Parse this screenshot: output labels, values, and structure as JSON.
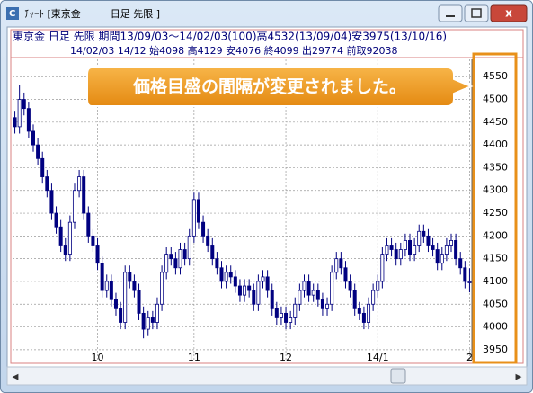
{
  "window": {
    "title": "ﾁｬｰﾄ [東京金　　　日足 先限 ]"
  },
  "chart_data": {
    "type": "candlestick",
    "title": "東京金 日足 先限 期間13/09/03～14/02/03(100)高4532(13/09/04)安3975(13/10/16)",
    "subtitle": "14/02/03 14/12 始4098 高4129 安4076 終4099 出29774 前取92038",
    "annotation": "価格目盛の間隔が変更されました。",
    "categories": [
      null,
      null,
      null,
      null,
      null,
      null,
      null,
      null,
      null,
      null,
      null,
      null,
      null,
      null,
      null,
      null,
      null,
      null,
      "10",
      null,
      null,
      null,
      null,
      null,
      null,
      null,
      null,
      null,
      null,
      null,
      null,
      null,
      null,
      null,
      null,
      null,
      null,
      null,
      null,
      "11",
      null,
      null,
      null,
      null,
      null,
      null,
      null,
      null,
      null,
      null,
      null,
      null,
      null,
      null,
      null,
      null,
      null,
      null,
      null,
      "12",
      null,
      null,
      null,
      null,
      null,
      null,
      null,
      null,
      null,
      null,
      null,
      null,
      null,
      null,
      null,
      null,
      null,
      null,
      null,
      "14/1",
      null,
      null,
      null,
      null,
      null,
      null,
      null,
      null,
      null,
      null,
      null,
      null,
      null,
      null,
      null,
      null,
      null,
      null,
      null,
      "2"
    ],
    "open": [
      4460,
      4440,
      4500,
      4480,
      4430,
      4400,
      4370,
      4330,
      4300,
      4250,
      4220,
      4180,
      4160,
      4230,
      4300,
      4330,
      4250,
      4200,
      4180,
      4140,
      4080,
      4100,
      4060,
      4040,
      4010,
      4120,
      4100,
      4080,
      4030,
      3995,
      4020,
      4010,
      4050,
      4120,
      4160,
      4150,
      4130,
      4170,
      4150,
      4200,
      4280,
      4230,
      4200,
      4180,
      4150,
      4130,
      4100,
      4120,
      4110,
      4090,
      4070,
      4090,
      4080,
      4050,
      4100,
      4110,
      4080,
      4040,
      4020,
      4030,
      4010,
      4020,
      4050,
      4080,
      4100,
      4070,
      4080,
      4060,
      4040,
      4050,
      4120,
      4150,
      4130,
      4100,
      4080,
      4040,
      4030,
      4010,
      4050,
      4080,
      4100,
      4160,
      4180,
      4170,
      4150,
      4170,
      4190,
      4160,
      4180,
      4210,
      4200,
      4180,
      4170,
      4140,
      4160,
      4180,
      4190,
      4150,
      4130,
      4098
    ],
    "high": [
      4475,
      4532,
      4515,
      4495,
      4445,
      4415,
      4385,
      4345,
      4315,
      4265,
      4235,
      4195,
      4245,
      4315,
      4345,
      4345,
      4265,
      4215,
      4195,
      4155,
      4115,
      4115,
      4075,
      4055,
      4135,
      4135,
      4115,
      4095,
      4045,
      4035,
      4035,
      4065,
      4135,
      4175,
      4175,
      4165,
      4185,
      4185,
      4215,
      4295,
      4295,
      4245,
      4215,
      4195,
      4165,
      4145,
      4135,
      4135,
      4125,
      4105,
      4105,
      4105,
      4095,
      4115,
      4125,
      4125,
      4095,
      4055,
      4045,
      4045,
      4035,
      4065,
      4095,
      4115,
      4115,
      4095,
      4095,
      4075,
      4065,
      4135,
      4165,
      4165,
      4145,
      4115,
      4095,
      4055,
      4045,
      4065,
      4095,
      4115,
      4175,
      4195,
      4195,
      4185,
      4185,
      4205,
      4205,
      4195,
      4225,
      4225,
      4215,
      4195,
      4185,
      4175,
      4195,
      4205,
      4205,
      4165,
      4145,
      4129
    ],
    "low": [
      4425,
      4425,
      4465,
      4415,
      4385,
      4355,
      4315,
      4285,
      4235,
      4205,
      4165,
      4145,
      4145,
      4215,
      4285,
      4235,
      4185,
      4165,
      4125,
      4065,
      4065,
      4045,
      4025,
      3995,
      3995,
      4085,
      4065,
      4015,
      3975,
      3980,
      3995,
      3995,
      4035,
      4105,
      4135,
      4115,
      4115,
      4135,
      4135,
      4185,
      4215,
      4185,
      4165,
      4135,
      4115,
      4085,
      4085,
      4095,
      4075,
      4055,
      4055,
      4065,
      4035,
      4035,
      4085,
      4065,
      4025,
      4005,
      4005,
      3995,
      3995,
      4005,
      4035,
      4065,
      4055,
      4055,
      4045,
      4025,
      4025,
      4035,
      4105,
      4115,
      4085,
      4065,
      4025,
      4015,
      3995,
      3995,
      4035,
      4065,
      4085,
      4145,
      4155,
      4135,
      4135,
      4155,
      4145,
      4145,
      4165,
      4185,
      4165,
      4155,
      4125,
      4125,
      4145,
      4165,
      4135,
      4115,
      4085,
      4076
    ],
    "close": [
      4440,
      4500,
      4480,
      4430,
      4400,
      4370,
      4330,
      4300,
      4250,
      4220,
      4180,
      4160,
      4230,
      4300,
      4330,
      4250,
      4200,
      4180,
      4140,
      4080,
      4100,
      4060,
      4040,
      4010,
      4120,
      4100,
      4080,
      4030,
      3995,
      4020,
      4010,
      4050,
      4120,
      4160,
      4150,
      4130,
      4170,
      4150,
      4200,
      4280,
      4230,
      4200,
      4180,
      4150,
      4130,
      4100,
      4120,
      4110,
      4090,
      4070,
      4090,
      4080,
      4050,
      4100,
      4110,
      4080,
      4040,
      4020,
      4030,
      4010,
      4020,
      4050,
      4080,
      4100,
      4070,
      4080,
      4060,
      4040,
      4050,
      4120,
      4150,
      4130,
      4100,
      4080,
      4040,
      4030,
      4010,
      4050,
      4080,
      4100,
      4160,
      4180,
      4170,
      4150,
      4170,
      4190,
      4160,
      4180,
      4210,
      4200,
      4180,
      4170,
      4140,
      4160,
      4180,
      4190,
      4150,
      4130,
      4100,
      4099
    ],
    "up_color": "#ffffff",
    "down_color": "#000080",
    "ylim": [
      3928,
      4588
    ],
    "yticks": [
      3950,
      4000,
      4050,
      4100,
      4150,
      4200,
      4250,
      4300,
      4350,
      4400,
      4450,
      4500,
      4550
    ],
    "grid": true
  }
}
